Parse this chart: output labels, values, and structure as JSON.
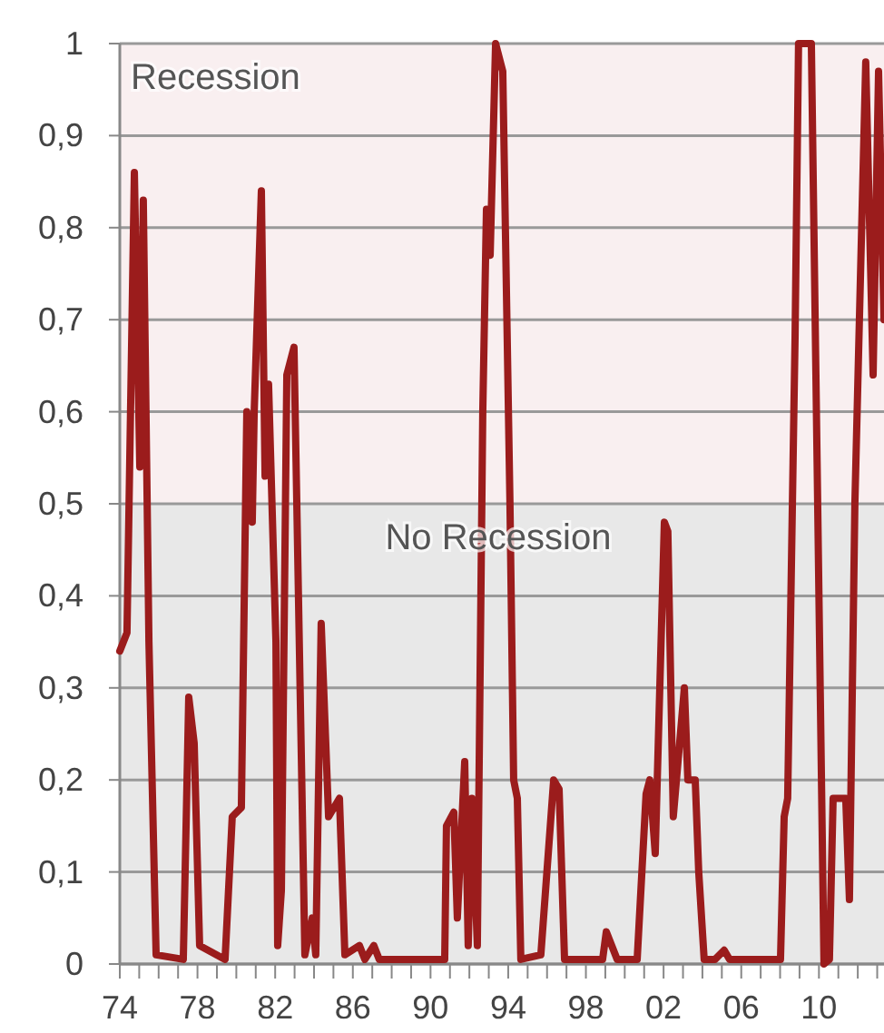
{
  "chart_data": {
    "type": "line",
    "x": [
      1974.0,
      1974.37,
      1974.75,
      1975.03,
      1975.21,
      1975.5,
      1975.87,
      1977.27,
      1977.55,
      1977.83,
      1978.11,
      1979.42,
      1979.79,
      1980.26,
      1980.54,
      1980.82,
      1980.92,
      1981.29,
      1981.48,
      1981.66,
      1982.04,
      1982.13,
      1982.32,
      1982.6,
      1982.97,
      1983.53,
      1983.91,
      1984.09,
      1984.37,
      1984.75,
      1985.31,
      1985.59,
      1986.34,
      1986.62,
      1987.08,
      1987.36,
      1990.73,
      1990.82,
      1991.2,
      1991.38,
      1991.76,
      1991.94,
      1992.13,
      1992.41,
      1992.69,
      1992.88,
      1993.07,
      1993.35,
      1993.72,
      1994.09,
      1994.28,
      1994.47,
      1994.65,
      1995.68,
      1996.34,
      1996.62,
      1996.9,
      1998.86,
      1999.05,
      1999.61,
      2000.64,
      2001.1,
      2001.29,
      2001.57,
      2002.04,
      2002.22,
      2002.5,
      2003.07,
      2003.25,
      2003.63,
      2003.81,
      2004.09,
      2004.65,
      2005.12,
      2005.4,
      2008.02,
      2008.21,
      2008.39,
      2008.77,
      2008.95,
      2009.61,
      2010.26,
      2010.54,
      2010.73,
      2011.38,
      2011.57,
      2011.85,
      2012.41,
      2012.79,
      2013.07,
      2013.35
    ],
    "series": [
      {
        "color": "#9b1c1c",
        "values": [
          0.34,
          0.36,
          0.86,
          0.54,
          0.83,
          0.35,
          0.01,
          0.005,
          0.29,
          0.24,
          0.02,
          0.005,
          0.16,
          0.17,
          0.6,
          0.48,
          0.6,
          0.84,
          0.53,
          0.63,
          0.35,
          0.02,
          0.08,
          0.64,
          0.67,
          0.01,
          0.05,
          0.01,
          0.37,
          0.16,
          0.18,
          0.01,
          0.02,
          0.005,
          0.02,
          0.005,
          0.005,
          0.15,
          0.165,
          0.05,
          0.22,
          0.02,
          0.18,
          0.02,
          0.6,
          0.82,
          0.77,
          1.0,
          0.97,
          0.5,
          0.2,
          0.18,
          0.005,
          0.01,
          0.2,
          0.19,
          0.005,
          0.005,
          0.035,
          0.005,
          0.005,
          0.185,
          0.2,
          0.12,
          0.48,
          0.47,
          0.16,
          0.3,
          0.2,
          0.2,
          0.1,
          0.005,
          0.005,
          0.015,
          0.005,
          0.005,
          0.16,
          0.18,
          0.68,
          1.0,
          1.0,
          0.0,
          0.005,
          0.18,
          0.18,
          0.07,
          0.5,
          0.98,
          0.64,
          0.97,
          0.7
        ]
      }
    ],
    "xlim": [
      1974,
      2013.35
    ],
    "xticks": [
      {
        "value": 1974,
        "label": "74"
      },
      {
        "value": 1975,
        "label": null
      },
      {
        "value": 1976,
        "label": null
      },
      {
        "value": 1977,
        "label": null
      },
      {
        "value": 1978,
        "label": "78"
      },
      {
        "value": 1979,
        "label": null
      },
      {
        "value": 1980,
        "label": null
      },
      {
        "value": 1981,
        "label": null
      },
      {
        "value": 1982,
        "label": "82"
      },
      {
        "value": 1983,
        "label": null
      },
      {
        "value": 1984,
        "label": null
      },
      {
        "value": 1985,
        "label": null
      },
      {
        "value": 1986,
        "label": "86"
      },
      {
        "value": 1987,
        "label": null
      },
      {
        "value": 1988,
        "label": null
      },
      {
        "value": 1989,
        "label": null
      },
      {
        "value": 1990,
        "label": "90"
      },
      {
        "value": 1991,
        "label": null
      },
      {
        "value": 1992,
        "label": null
      },
      {
        "value": 1993,
        "label": null
      },
      {
        "value": 1994,
        "label": "94"
      },
      {
        "value": 1995,
        "label": null
      },
      {
        "value": 1996,
        "label": null
      },
      {
        "value": 1997,
        "label": null
      },
      {
        "value": 1998,
        "label": "98"
      },
      {
        "value": 1999,
        "label": null
      },
      {
        "value": 2000,
        "label": null
      },
      {
        "value": 2001,
        "label": null
      },
      {
        "value": 2002,
        "label": "02"
      },
      {
        "value": 2003,
        "label": null
      },
      {
        "value": 2004,
        "label": null
      },
      {
        "value": 2005,
        "label": null
      },
      {
        "value": 2006,
        "label": "06"
      },
      {
        "value": 2007,
        "label": null
      },
      {
        "value": 2008,
        "label": null
      },
      {
        "value": 2009,
        "label": null
      },
      {
        "value": 2010,
        "label": "10"
      },
      {
        "value": 2011,
        "label": null
      },
      {
        "value": 2012,
        "label": null
      },
      {
        "value": 2013,
        "label": null
      }
    ],
    "ylim": [
      0,
      1
    ],
    "yticks": [
      0,
      {
        "value": 0.1,
        "label": "0,1"
      },
      {
        "value": 0.2,
        "label": "0,2"
      },
      {
        "value": 0.3,
        "label": "0,3"
      },
      {
        "value": 0.4,
        "label": "0,4"
      },
      {
        "value": 0.5,
        "label": "0,5"
      },
      {
        "value": 0.6,
        "label": "0,6"
      },
      {
        "value": 0.7,
        "label": "0,7"
      },
      {
        "value": 0.8,
        "label": "0,8"
      },
      {
        "value": 0.9,
        "label": "0,9"
      },
      1
    ],
    "grid": "y",
    "bands": [
      {
        "axis": "y",
        "from": 0.5,
        "to": 1,
        "label": "Recession",
        "color": "#f9eff0"
      },
      {
        "axis": "y",
        "from": 0,
        "to": 0.5,
        "label": "No Recession",
        "color": "#e8e8e8"
      }
    ]
  }
}
